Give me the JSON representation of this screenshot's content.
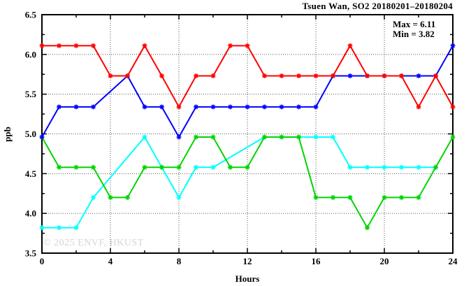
{
  "window": {
    "background": "#ffffff"
  },
  "chart_data": {
    "type": "line",
    "title": "Tsuen Wan, SO2 20180201–20180204",
    "xlabel": "Hours",
    "ylabel": "ppb",
    "xlim": [
      0,
      24
    ],
    "ylim": [
      3.5,
      6.5
    ],
    "x_major_ticks": [
      0,
      4,
      8,
      12,
      16,
      20,
      24
    ],
    "x_minor_ticks": [
      2,
      6,
      10,
      14,
      18,
      22
    ],
    "y_major_ticks": [
      3.5,
      4.0,
      4.5,
      5.0,
      5.5,
      6.0,
      6.5
    ],
    "y_minor_ticks": [
      3.75,
      4.25,
      4.75,
      5.25,
      5.75,
      6.25
    ],
    "grid": {
      "x_lines": [
        4,
        8,
        12,
        16,
        20
      ],
      "y_lines": [
        4.0,
        4.5,
        5.0,
        5.5,
        6.0
      ],
      "style": "dotted"
    },
    "legend_position": "none",
    "annotations": {
      "max_label": "Max = 6.11",
      "min_label": "Min = 3.82"
    },
    "watermark": "© 2025 ENVF, HKUST",
    "x": [
      0,
      1,
      2,
      3,
      4,
      5,
      6,
      7,
      8,
      9,
      10,
      11,
      12,
      13,
      14,
      15,
      16,
      17,
      18,
      19,
      20,
      21,
      22,
      23,
      24
    ],
    "series": [
      {
        "name": "cyan",
        "color": "#00ffff",
        "values": [
          3.82,
          3.82,
          3.82,
          4.2,
          null,
          null,
          4.96,
          4.58,
          4.2,
          4.58,
          4.58,
          null,
          null,
          4.96,
          4.96,
          4.96,
          4.96,
          4.96,
          4.58,
          4.58,
          4.58,
          4.58,
          4.58,
          4.58,
          null
        ]
      },
      {
        "name": "green",
        "color": "#00d500",
        "values": [
          4.96,
          4.58,
          4.58,
          4.58,
          4.2,
          4.2,
          4.58,
          4.58,
          4.58,
          4.96,
          4.96,
          4.58,
          4.58,
          4.96,
          4.96,
          4.96,
          4.2,
          4.2,
          4.2,
          3.82,
          4.2,
          4.2,
          4.2,
          4.58,
          4.96
        ]
      },
      {
        "name": "blue",
        "color": "#0000ff",
        "values": [
          4.96,
          5.34,
          5.34,
          5.34,
          null,
          5.73,
          5.34,
          5.34,
          4.96,
          5.34,
          5.34,
          5.34,
          5.34,
          5.34,
          5.34,
          5.34,
          5.34,
          5.73,
          5.73,
          5.73,
          5.73,
          5.73,
          5.73,
          5.73,
          6.11
        ]
      },
      {
        "name": "red",
        "color": "#ff0000",
        "values": [
          6.11,
          6.11,
          6.11,
          6.11,
          5.73,
          5.73,
          6.11,
          5.73,
          5.34,
          5.73,
          5.73,
          6.11,
          6.11,
          5.73,
          5.73,
          5.73,
          5.73,
          5.73,
          6.11,
          5.73,
          5.73,
          5.73,
          5.34,
          5.73,
          5.34
        ]
      }
    ],
    "stats": {
      "max": 6.11,
      "min": 3.82
    }
  }
}
